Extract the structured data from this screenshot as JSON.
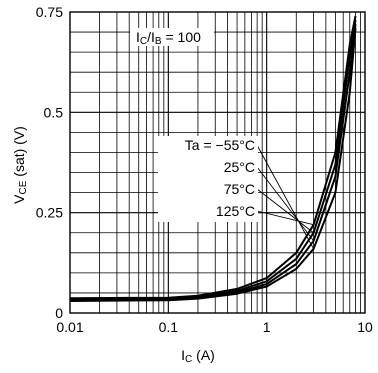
{
  "chart_data": {
    "type": "line",
    "xscale": "log",
    "xlim": [
      0.01,
      10
    ],
    "ylim": [
      0,
      0.75
    ],
    "x_ticks": [
      {
        "value": 0.01,
        "label": "0.01"
      },
      {
        "value": 0.1,
        "label": "0.1"
      },
      {
        "value": 1,
        "label": "1"
      },
      {
        "value": 10,
        "label": "10"
      }
    ],
    "y_ticks": [
      {
        "value": 0,
        "label": "0"
      },
      {
        "value": 0.25,
        "label": "0.25"
      },
      {
        "value": 0.5,
        "label": "0.5"
      },
      {
        "value": 0.75,
        "label": "0.75"
      }
    ],
    "xlabel": {
      "main": "I",
      "sub": "C",
      "unit": " (A)"
    },
    "ylabel": {
      "main": "V",
      "sub": "CE",
      "rest": " (sat)  (V)"
    },
    "condition": {
      "p1": "I",
      "s1": "C",
      "p2": "/I",
      "s2": "B",
      "p3": " = 100"
    },
    "grid": true,
    "x": [
      0.01,
      0.1,
      0.2,
      0.5,
      1,
      2,
      3,
      5,
      7,
      8
    ],
    "series": [
      {
        "name": "Ta = −55°C",
        "values": [
          0.03,
          0.032,
          0.036,
          0.048,
          0.066,
          0.11,
          0.16,
          0.3,
          0.55,
          0.71
        ]
      },
      {
        "name": "25°C",
        "values": [
          0.032,
          0.033,
          0.037,
          0.051,
          0.072,
          0.122,
          0.18,
          0.34,
          0.6,
          0.72
        ]
      },
      {
        "name": "75°C",
        "values": [
          0.034,
          0.035,
          0.04,
          0.055,
          0.079,
          0.135,
          0.2,
          0.37,
          0.64,
          0.73
        ]
      },
      {
        "name": "125°C",
        "values": [
          0.037,
          0.038,
          0.043,
          0.06,
          0.087,
          0.15,
          0.22,
          0.4,
          0.67,
          0.74
        ]
      }
    ]
  }
}
